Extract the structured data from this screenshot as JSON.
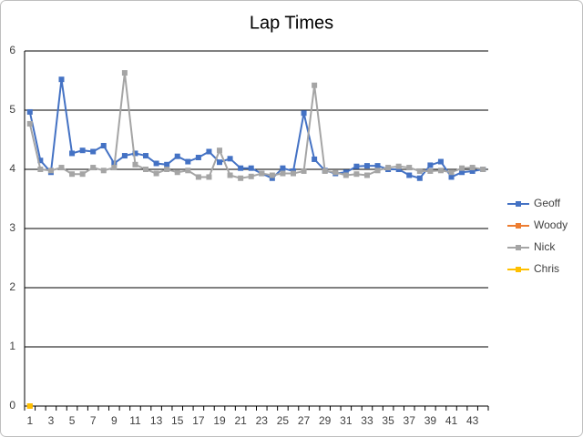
{
  "chart_data": {
    "type": "line",
    "title": "Lap Times",
    "categories": [
      1,
      null,
      3,
      null,
      5,
      null,
      7,
      null,
      9,
      null,
      11,
      null,
      13,
      null,
      15,
      null,
      17,
      null,
      19,
      null,
      21,
      null,
      23,
      null,
      25,
      null,
      27,
      null,
      29,
      null,
      31,
      null,
      33,
      null,
      35,
      null,
      37,
      null,
      39,
      null,
      41,
      null,
      43,
      null
    ],
    "series": [
      {
        "name": "Geoff",
        "color": "#4472c4",
        "values": [
          4.97,
          4.15,
          3.95,
          5.52,
          4.27,
          4.32,
          4.3,
          4.4,
          4.1,
          4.23,
          4.27,
          4.23,
          4.1,
          4.08,
          4.22,
          4.13,
          4.2,
          4.3,
          4.12,
          4.18,
          4.02,
          4.02,
          3.93,
          3.85,
          4.02,
          3.97,
          4.95,
          4.17,
          3.98,
          3.93,
          3.95,
          4.05,
          4.06,
          4.06,
          4.0,
          4.0,
          3.9,
          3.85,
          4.07,
          4.13,
          3.87,
          3.95,
          3.97,
          4.0
        ]
      },
      {
        "name": "Woody",
        "color": "#ed7d31",
        "values": [
          0,
          null,
          null,
          null,
          null,
          null,
          null,
          null,
          null,
          null,
          null,
          null,
          null,
          null,
          null,
          null,
          null,
          null,
          null,
          null,
          null,
          null,
          null,
          null,
          null,
          null,
          null,
          null,
          null,
          null,
          null,
          null,
          null,
          null,
          null,
          null,
          null,
          null,
          null,
          null,
          null,
          null,
          null,
          null
        ]
      },
      {
        "name": "Nick",
        "color": "#a5a5a5",
        "values": [
          4.77,
          4.0,
          3.98,
          4.03,
          3.92,
          3.92,
          4.03,
          3.98,
          4.03,
          5.63,
          4.08,
          4.0,
          3.93,
          4.0,
          3.95,
          3.98,
          3.87,
          3.87,
          4.32,
          3.9,
          3.85,
          3.88,
          3.93,
          3.9,
          3.93,
          3.93,
          3.97,
          5.42,
          3.97,
          3.95,
          3.9,
          3.92,
          3.9,
          3.98,
          4.03,
          4.05,
          4.03,
          3.97,
          3.97,
          3.98,
          3.95,
          4.02,
          4.03,
          4.0
        ]
      },
      {
        "name": "Chris",
        "color": "#ffc000",
        "values": [
          0,
          null,
          null,
          null,
          null,
          null,
          null,
          null,
          null,
          null,
          null,
          null,
          null,
          null,
          null,
          null,
          null,
          null,
          null,
          null,
          null,
          null,
          null,
          null,
          null,
          null,
          null,
          null,
          null,
          null,
          null,
          null,
          null,
          null,
          null,
          null,
          null,
          null,
          null,
          null,
          null,
          null,
          null,
          null
        ]
      }
    ],
    "ylim": [
      0,
      6
    ],
    "yticks": [
      0,
      1,
      2,
      3,
      4,
      5,
      6
    ],
    "grid": true,
    "legend": "right"
  }
}
